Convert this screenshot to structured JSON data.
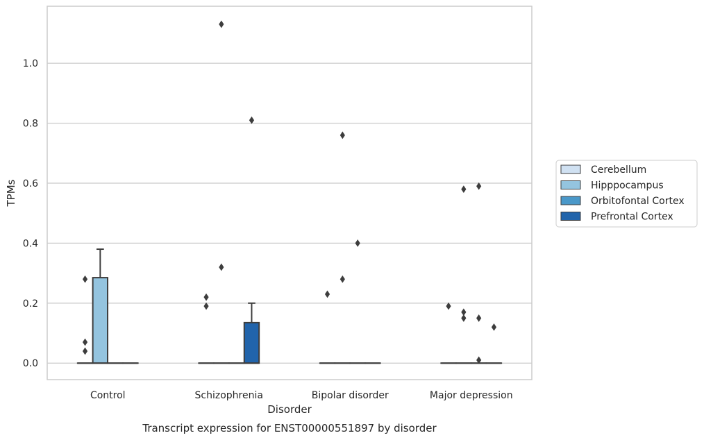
{
  "chart_data": {
    "type": "box",
    "title": "",
    "caption": "Transcript expression for ENST00000551897 by disorder",
    "xlabel": "Disorder",
    "ylabel": "TPMs",
    "ylim": [
      -0.055,
      1.19
    ],
    "yticks": [
      0.0,
      0.2,
      0.4,
      0.6,
      0.8,
      1.0
    ],
    "ytick_labels": [
      "0.0",
      "0.2",
      "0.4",
      "0.6",
      "0.8",
      "1.0"
    ],
    "grid": "horizontal",
    "legend_position": "right",
    "categories": [
      "Control",
      "Schizophrenia",
      "Bipolar disorder",
      "Major depression"
    ],
    "series": [
      {
        "name": "Cerebellum",
        "color": "#d0e1f2",
        "boxes": [
          {
            "q1": 0,
            "median": 0,
            "q3": 0,
            "whisker_low": 0,
            "whisker_high": 0,
            "outliers": []
          },
          {
            "q1": 0,
            "median": 0,
            "q3": 0,
            "whisker_low": 0,
            "whisker_high": 0,
            "outliers": []
          },
          {
            "q1": 0,
            "median": 0,
            "q3": 0,
            "whisker_low": 0,
            "whisker_high": 0,
            "outliers": []
          },
          {
            "q1": 0,
            "median": 0,
            "q3": 0,
            "whisker_low": 0,
            "whisker_high": 0,
            "outliers": []
          }
        ]
      },
      {
        "name": "Hipppocampus",
        "color": "#94c4df",
        "boxes": [
          {
            "q1": 0,
            "median": 0,
            "q3": 0.285,
            "whisker_low": 0,
            "whisker_high": 0.38,
            "outliers": []
          },
          {
            "q1": 0,
            "median": 0,
            "q3": 0,
            "whisker_low": 0,
            "whisker_high": 0,
            "outliers": [
              1.13,
              0.32
            ]
          },
          {
            "q1": 0,
            "median": 0,
            "q3": 0,
            "whisker_low": 0,
            "whisker_high": 0,
            "outliers": [
              0.76
            ]
          },
          {
            "q1": 0,
            "median": 0,
            "q3": 0,
            "whisker_low": 0,
            "whisker_high": 0,
            "outliers": [
              0.58,
              0.17,
              0.15
            ]
          }
        ]
      },
      {
        "name": "Orbitofontal Cortex",
        "color": "#4a98c9",
        "boxes": [
          {
            "q1": 0,
            "median": 0,
            "q3": 0,
            "whisker_low": 0,
            "whisker_high": 0,
            "outliers": []
          },
          {
            "q1": 0,
            "median": 0,
            "q3": 0,
            "whisker_low": 0,
            "whisker_high": 0,
            "outliers": []
          },
          {
            "q1": 0,
            "median": 0,
            "q3": 0,
            "whisker_low": 0,
            "whisker_high": 0,
            "outliers": [
              0.4
            ]
          },
          {
            "q1": 0,
            "median": 0,
            "q3": 0,
            "whisker_low": 0,
            "whisker_high": 0,
            "outliers": [
              0.59,
              0.15,
              0.01
            ]
          }
        ]
      },
      {
        "name": "Prefrontal Cortex",
        "color": "#2164ab",
        "boxes": [
          {
            "q1": 0,
            "median": 0,
            "q3": 0,
            "whisker_low": 0,
            "whisker_high": 0,
            "outliers": []
          },
          {
            "q1": 0,
            "median": 0,
            "q3": 0.135,
            "whisker_low": 0,
            "whisker_high": 0.2,
            "outliers": [
              0.81
            ]
          },
          {
            "q1": 0,
            "median": 0,
            "q3": 0,
            "whisker_low": 0,
            "whisker_high": 0,
            "outliers": []
          },
          {
            "q1": 0,
            "median": 0,
            "q3": 0,
            "whisker_low": 0,
            "whisker_high": 0,
            "outliers": [
              0.12
            ]
          }
        ]
      }
    ],
    "extra_outliers": [
      {
        "category": 0,
        "series": 0,
        "values": [
          0.28,
          0.07,
          0.04
        ]
      },
      {
        "category": 1,
        "series": 0,
        "values": [
          0.22,
          0.19
        ]
      },
      {
        "category": 1,
        "series": 1,
        "values": []
      },
      {
        "category": 2,
        "series": 0,
        "values": [
          0.23
        ]
      },
      {
        "category": 2,
        "series": 1,
        "values": [
          0.28
        ]
      },
      {
        "category": 3,
        "series": 0,
        "values": [
          0.19
        ]
      }
    ]
  }
}
